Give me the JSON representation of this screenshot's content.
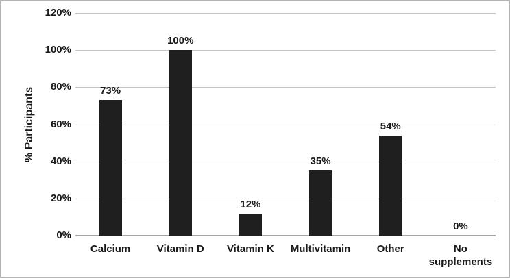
{
  "chart_data": {
    "type": "bar",
    "title": "",
    "categories": [
      "Calcium",
      "Vitamin D",
      "Vitamin K",
      "Multivitamin",
      "Other",
      "No supplements"
    ],
    "values": [
      73,
      100,
      12,
      35,
      54,
      0
    ],
    "data_labels": [
      "73%",
      "100%",
      "12%",
      "35%",
      "54%",
      "0%"
    ],
    "ylabel": "% Participants",
    "xlabel": "",
    "y_ticks": [
      {
        "value": 0,
        "label": "0%"
      },
      {
        "value": 20,
        "label": "20%"
      },
      {
        "value": 40,
        "label": "40%"
      },
      {
        "value": 60,
        "label": "60%"
      },
      {
        "value": 80,
        "label": "80%"
      },
      {
        "value": 100,
        "label": "100%"
      },
      {
        "value": 120,
        "label": "120%"
      }
    ],
    "ylim": [
      0,
      120
    ],
    "grid": "horizontal",
    "legend_position": "none",
    "colors": {
      "bar": "#1f1f1f",
      "gridline": "#c3c3c3",
      "axis_line": "#a6a6a6",
      "text": "#1a1a1a",
      "background": "#ffffff",
      "frame_border": "#b3b3b3"
    }
  }
}
